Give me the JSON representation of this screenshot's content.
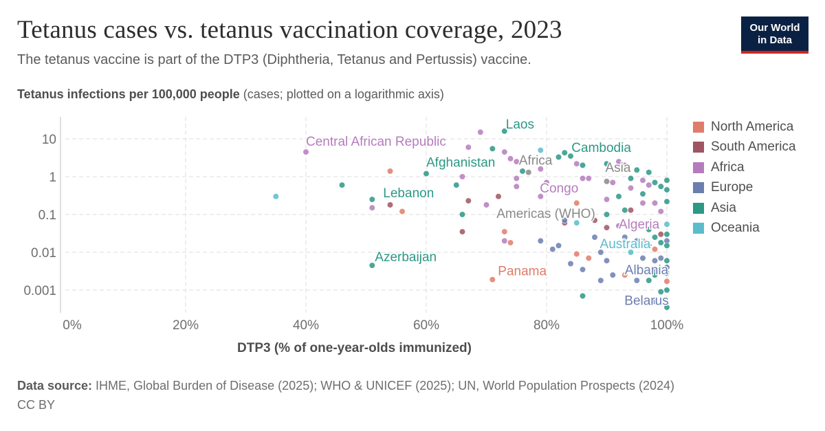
{
  "header": {
    "title": "Tetanus cases vs. tetanus vaccination coverage, 2023",
    "subtitle": "The tetanus vaccine is part of the DTP3 (Diphtheria, Tetanus and Pertussis) vaccine.",
    "logo_line1": "Our World",
    "logo_line2": "in Data"
  },
  "yaxis": {
    "label_bold": "Tetanus infections per 100,000 people",
    "label_rest": " (cases; plotted on a logarithmic axis)"
  },
  "footer": {
    "source_label": "Data source:",
    "source_text": " IHME, Global Burden of Disease (2025); WHO & UNICEF (2025); UN, World Population Prospects (2024)",
    "license": "CC BY"
  },
  "colors": {
    "North America": "#e07c6a",
    "South America": "#a05562",
    "Africa": "#b57cbd",
    "Europe": "#6b7eaf",
    "Asia": "#2c9886",
    "Oceania": "#5bbccb",
    "aggregate": "#888888"
  },
  "chart_data": {
    "type": "scatter",
    "title": "Tetanus cases vs. tetanus vaccination coverage, 2023",
    "xlabel": "DTP3 (% of one-year-olds immunized)",
    "ylabel": "Tetanus infections per 100,000 people",
    "xlim": [
      0,
      100
    ],
    "ylim": [
      0.0003,
      30
    ],
    "yscale": "log",
    "xticks": [
      "0%",
      "20%",
      "40%",
      "60%",
      "80%",
      "100%"
    ],
    "yticks": [
      "10",
      "1",
      "0.1",
      "0.01",
      "0.001"
    ],
    "grid": true,
    "legend_position": "right",
    "legend": [
      "North America",
      "South America",
      "Africa",
      "Europe",
      "Asia",
      "Oceania"
    ],
    "labels": [
      {
        "text": "Laos",
        "region": "Asia",
        "x": 73,
        "y": 16
      },
      {
        "text": "Central African Republic",
        "region": "Africa",
        "x": 40,
        "y": 4.5
      },
      {
        "text": "Cambodia",
        "region": "Asia",
        "x": 83,
        "y": 4.3
      },
      {
        "text": "Afghanistan",
        "region": "Asia",
        "x": 60,
        "y": 1.2
      },
      {
        "text": "Africa",
        "region": "aggregate",
        "x": 77,
        "y": 1.3
      },
      {
        "text": "Asia",
        "region": "aggregate",
        "x": 90,
        "y": 0.75
      },
      {
        "text": "Lebanon",
        "region": "Asia",
        "x": 51,
        "y": 0.25
      },
      {
        "text": "Congo",
        "region": "Africa",
        "x": 79,
        "y": 0.3
      },
      {
        "text": "Americas (WHO)",
        "region": "aggregate",
        "x": 80,
        "y": 0.1
      },
      {
        "text": "Algeria",
        "region": "Africa",
        "x": 92,
        "y": 0.05
      },
      {
        "text": "Australia",
        "region": "Oceania",
        "x": 94,
        "y": 0.01
      },
      {
        "text": "Azerbaijan",
        "region": "Asia",
        "x": 51,
        "y": 0.0045
      },
      {
        "text": "Albania",
        "region": "Europe",
        "x": 98,
        "y": 0.003
      },
      {
        "text": "Panama",
        "region": "North America",
        "x": 71,
        "y": 0.0019
      },
      {
        "text": "Belarus",
        "region": "Europe",
        "x": 98,
        "y": 0.0005
      }
    ],
    "points": [
      {
        "label": "Central African Republic",
        "region": "Africa",
        "x": 40,
        "y": 4.5
      },
      {
        "label": "Laos",
        "region": "Asia",
        "x": 73,
        "y": 16
      },
      {
        "label": "Cambodia",
        "region": "Asia",
        "x": 83,
        "y": 4.3
      },
      {
        "label": "Afghanistan",
        "region": "Asia",
        "x": 60,
        "y": 1.2
      },
      {
        "label": "Africa",
        "region": "aggregate",
        "x": 77,
        "y": 1.3
      },
      {
        "label": "Asia",
        "region": "aggregate",
        "x": 90,
        "y": 0.75
      },
      {
        "label": "Lebanon",
        "region": "Asia",
        "x": 51,
        "y": 0.25
      },
      {
        "label": "Congo",
        "region": "Africa",
        "x": 79,
        "y": 0.3
      },
      {
        "label": "Americas (WHO)",
        "region": "aggregate",
        "x": 80,
        "y": 0.1
      },
      {
        "label": "Algeria",
        "region": "Africa",
        "x": 92,
        "y": 0.05
      },
      {
        "label": "Australia",
        "region": "Oceania",
        "x": 94,
        "y": 0.01
      },
      {
        "label": "Azerbaijan",
        "region": "Asia",
        "x": 51,
        "y": 0.0045
      },
      {
        "label": "Albania",
        "region": "Europe",
        "x": 98,
        "y": 0.003
      },
      {
        "label": "Panama",
        "region": "North America",
        "x": 71,
        "y": 0.0019
      },
      {
        "label": "Belarus",
        "region": "Europe",
        "x": 98,
        "y": 0.0005
      },
      {
        "region": "Oceania",
        "x": 35,
        "y": 0.3
      },
      {
        "region": "Asia",
        "x": 46,
        "y": 0.6
      },
      {
        "region": "Africa",
        "x": 51,
        "y": 0.15
      },
      {
        "region": "North America",
        "x": 54,
        "y": 1.4
      },
      {
        "region": "South America",
        "x": 54,
        "y": 0.18
      },
      {
        "region": "North America",
        "x": 56,
        "y": 0.12
      },
      {
        "region": "Asia",
        "x": 65,
        "y": 0.6
      },
      {
        "region": "Africa",
        "x": 66,
        "y": 1.0
      },
      {
        "region": "Africa",
        "x": 67,
        "y": 6
      },
      {
        "region": "South America",
        "x": 67,
        "y": 0.23
      },
      {
        "region": "South America",
        "x": 66,
        "y": 0.035
      },
      {
        "region": "Asia",
        "x": 66,
        "y": 0.1
      },
      {
        "region": "Africa",
        "x": 69,
        "y": 15
      },
      {
        "region": "Africa",
        "x": 70,
        "y": 0.18
      },
      {
        "region": "Asia",
        "x": 71,
        "y": 5.5
      },
      {
        "region": "South America",
        "x": 72,
        "y": 0.3
      },
      {
        "region": "Africa",
        "x": 73,
        "y": 0.02
      },
      {
        "region": "North America",
        "x": 73,
        "y": 0.035
      },
      {
        "region": "Africa",
        "x": 73,
        "y": 4.5
      },
      {
        "region": "Africa",
        "x": 74,
        "y": 3
      },
      {
        "region": "Africa",
        "x": 75,
        "y": 2.5
      },
      {
        "region": "Africa",
        "x": 75,
        "y": 0.9
      },
      {
        "region": "Africa",
        "x": 75,
        "y": 0.55
      },
      {
        "region": "Asia",
        "x": 76,
        "y": 1.4
      },
      {
        "region": "North America",
        "x": 74,
        "y": 0.018
      },
      {
        "region": "Europe",
        "x": 79,
        "y": 0.02
      },
      {
        "region": "Oceania",
        "x": 79,
        "y": 5
      },
      {
        "region": "Africa",
        "x": 79,
        "y": 1.6
      },
      {
        "region": "Africa",
        "x": 80,
        "y": 0.7
      },
      {
        "region": "Europe",
        "x": 81,
        "y": 0.012
      },
      {
        "region": "Asia",
        "x": 82,
        "y": 3.3
      },
      {
        "region": "Europe",
        "x": 82,
        "y": 0.015
      },
      {
        "region": "South America",
        "x": 83,
        "y": 0.06
      },
      {
        "region": "Europe",
        "x": 83,
        "y": 0.07
      },
      {
        "region": "Asia",
        "x": 84,
        "y": 3.5
      },
      {
        "region": "Africa",
        "x": 85,
        "y": 2.2
      },
      {
        "region": "North America",
        "x": 85,
        "y": 0.2
      },
      {
        "region": "Oceania",
        "x": 85,
        "y": 0.06
      },
      {
        "region": "North America",
        "x": 85,
        "y": 0.009
      },
      {
        "region": "Europe",
        "x": 84,
        "y": 0.005
      },
      {
        "region": "Asia",
        "x": 86,
        "y": 2.0
      },
      {
        "region": "Africa",
        "x": 86,
        "y": 0.9
      },
      {
        "region": "Asia",
        "x": 86,
        "y": 0.0007
      },
      {
        "region": "Europe",
        "x": 86,
        "y": 0.0035
      },
      {
        "region": "North America",
        "x": 87,
        "y": 0.007
      },
      {
        "region": "Africa",
        "x": 87,
        "y": 0.9
      },
      {
        "region": "South America",
        "x": 88,
        "y": 0.07
      },
      {
        "region": "Europe",
        "x": 88,
        "y": 0.025
      },
      {
        "region": "Europe",
        "x": 89,
        "y": 0.01
      },
      {
        "region": "Europe",
        "x": 89,
        "y": 0.0018
      },
      {
        "region": "Asia",
        "x": 90,
        "y": 2.2
      },
      {
        "region": "Africa",
        "x": 90,
        "y": 0.25
      },
      {
        "region": "Asia",
        "x": 90,
        "y": 0.1
      },
      {
        "region": "South America",
        "x": 90,
        "y": 0.045
      },
      {
        "region": "Europe",
        "x": 90,
        "y": 0.006
      },
      {
        "region": "Europe",
        "x": 91,
        "y": 0.0025
      },
      {
        "region": "Africa",
        "x": 91,
        "y": 0.7
      },
      {
        "region": "Asia",
        "x": 92,
        "y": 0.3
      },
      {
        "region": "Africa",
        "x": 92,
        "y": 2.5
      },
      {
        "region": "Africa",
        "x": 93,
        "y": 2.0
      },
      {
        "region": "Asia",
        "x": 93,
        "y": 0.13
      },
      {
        "region": "Europe",
        "x": 93,
        "y": 0.025
      },
      {
        "region": "North America",
        "x": 93,
        "y": 0.0025
      },
      {
        "region": "Asia",
        "x": 94,
        "y": 0.9
      },
      {
        "region": "Africa",
        "x": 94,
        "y": 0.5
      },
      {
        "region": "South America",
        "x": 94,
        "y": 0.13
      },
      {
        "region": "Europe",
        "x": 95,
        "y": 0.02
      },
      {
        "region": "Asia",
        "x": 95,
        "y": 1.5
      },
      {
        "region": "Europe",
        "x": 95,
        "y": 0.0018
      },
      {
        "region": "Africa",
        "x": 96,
        "y": 0.8
      },
      {
        "region": "Africa",
        "x": 96,
        "y": 0.2
      },
      {
        "region": "Asia",
        "x": 96,
        "y": 0.35
      },
      {
        "region": "North America",
        "x": 96,
        "y": 0.02
      },
      {
        "region": "Europe",
        "x": 96,
        "y": 0.007
      },
      {
        "region": "Asia",
        "x": 97,
        "y": 1.3
      },
      {
        "region": "Africa",
        "x": 97,
        "y": 0.6
      },
      {
        "region": "Asia",
        "x": 97,
        "y": 0.04
      },
      {
        "region": "Europe",
        "x": 97,
        "y": 0.015
      },
      {
        "region": "Europe",
        "x": 97,
        "y": 0.003
      },
      {
        "region": "Asia",
        "x": 97,
        "y": 0.0018
      },
      {
        "region": "Asia",
        "x": 98,
        "y": 0.7
      },
      {
        "region": "Africa",
        "x": 98,
        "y": 0.2
      },
      {
        "region": "Africa",
        "x": 98,
        "y": 0.05
      },
      {
        "region": "Asia",
        "x": 98,
        "y": 0.025
      },
      {
        "region": "North America",
        "x": 98,
        "y": 0.012
      },
      {
        "region": "Europe",
        "x": 98,
        "y": 0.006
      },
      {
        "region": "Asia",
        "x": 98,
        "y": 0.0025
      },
      {
        "region": "Asia",
        "x": 99,
        "y": 0.55
      },
      {
        "region": "Africa",
        "x": 99,
        "y": 0.12
      },
      {
        "region": "South America",
        "x": 99,
        "y": 0.03
      },
      {
        "region": "Asia",
        "x": 99,
        "y": 0.018
      },
      {
        "region": "Europe",
        "x": 99,
        "y": 0.007
      },
      {
        "region": "Europe",
        "x": 99,
        "y": 0.0035
      },
      {
        "region": "Asia",
        "x": 99,
        "y": 0.0009
      },
      {
        "region": "Asia",
        "x": 100,
        "y": 0.8
      },
      {
        "region": "Asia",
        "x": 100,
        "y": 0.45
      },
      {
        "region": "Asia",
        "x": 100,
        "y": 0.22
      },
      {
        "region": "Oceania",
        "x": 100,
        "y": 0.055
      },
      {
        "region": "Asia",
        "x": 100,
        "y": 0.03
      },
      {
        "region": "Europe",
        "x": 100,
        "y": 0.02
      },
      {
        "region": "Asia",
        "x": 100,
        "y": 0.015
      },
      {
        "region": "Asia",
        "x": 100,
        "y": 0.006
      },
      {
        "region": "Europe",
        "x": 100,
        "y": 0.004
      },
      {
        "region": "Asia",
        "x": 100,
        "y": 0.0028
      },
      {
        "region": "North America",
        "x": 100,
        "y": 0.0017
      },
      {
        "region": "Asia",
        "x": 100,
        "y": 0.001
      },
      {
        "region": "Asia",
        "x": 100,
        "y": 0.00035
      }
    ]
  }
}
